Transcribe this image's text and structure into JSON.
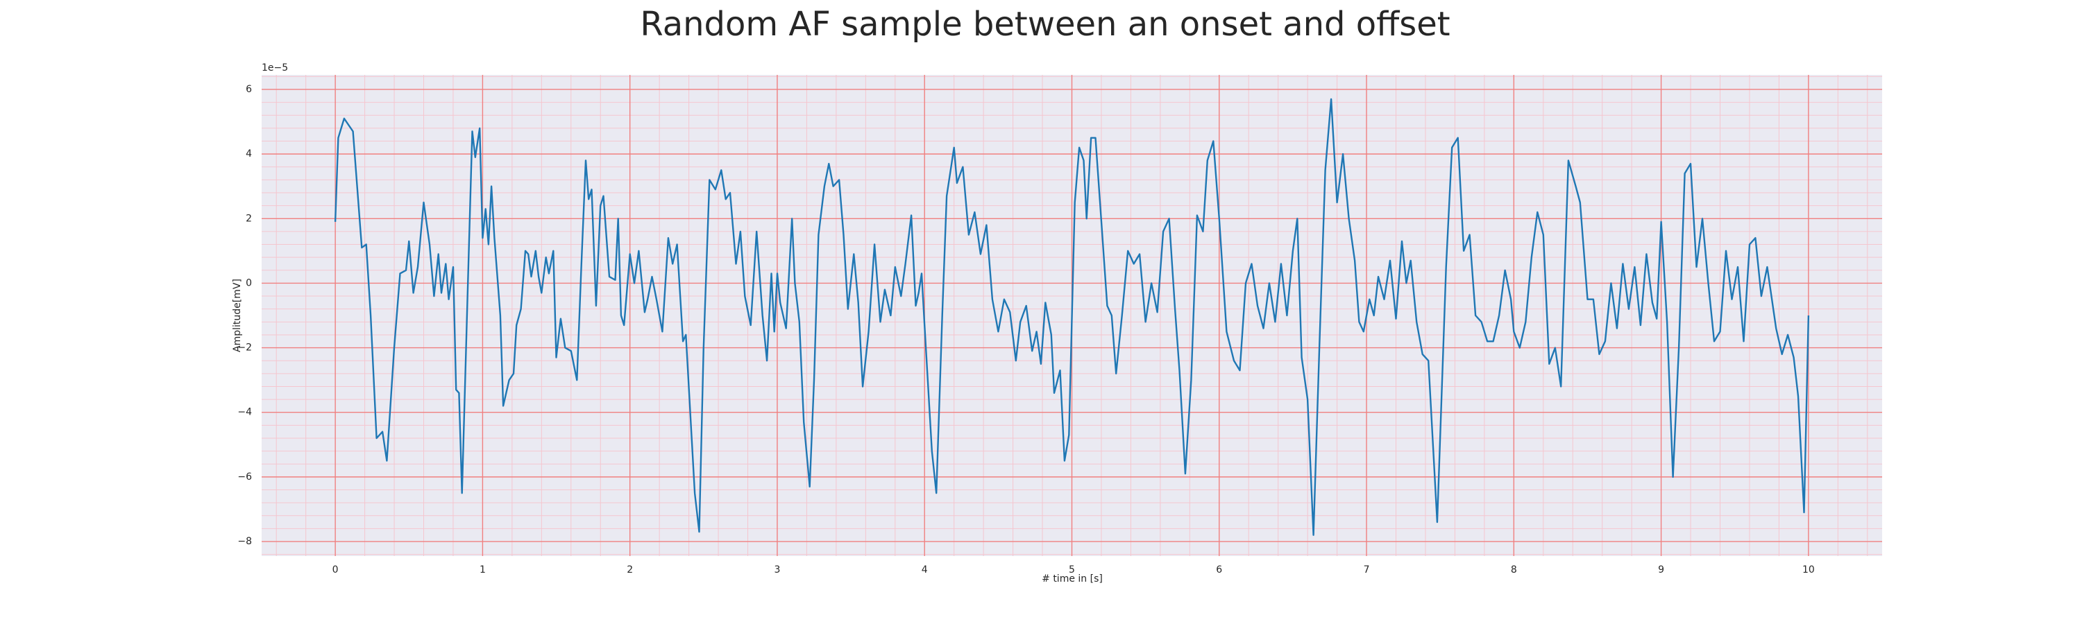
{
  "chart_data": {
    "type": "line",
    "title": "Random AF sample between an onset and offset",
    "x_label": "# time in [s]",
    "y_label": "Amplitude[mV]",
    "y_offset_label": "1e−5",
    "color": "#1f77b4",
    "background": "#eaeaf2",
    "grid": true,
    "grid_color": "#f08080",
    "minor_grid": true,
    "minor_grid_color": "#f5c6cf",
    "minor_divisions": 5,
    "xlim": [
      -0.5,
      10.5
    ],
    "ylim": [
      -8.45,
      6.45
    ],
    "xticks": [
      0,
      1,
      2,
      3,
      4,
      5,
      6,
      7,
      8,
      9,
      10
    ],
    "yticks": [
      {
        "value": -8,
        "label": "−8"
      },
      {
        "value": -6,
        "label": "−6"
      },
      {
        "value": -4,
        "label": "−4"
      },
      {
        "value": -2,
        "label": "−2"
      },
      0,
      2,
      4,
      6
    ],
    "x": [
      0,
      0.02,
      0.06,
      0.12,
      0.18,
      0.21,
      0.24,
      0.28,
      0.32,
      0.35,
      0.4,
      0.44,
      0.48,
      0.5,
      0.53,
      0.56,
      0.6,
      0.64,
      0.67,
      0.7,
      0.72,
      0.75,
      0.77,
      0.8,
      0.82,
      0.84,
      0.86,
      0.9,
      0.93,
      0.95,
      0.98,
      1.0,
      1.02,
      1.04,
      1.06,
      1.08,
      1.12,
      1.14,
      1.18,
      1.21,
      1.23,
      1.26,
      1.29,
      1.31,
      1.33,
      1.36,
      1.38,
      1.4,
      1.43,
      1.45,
      1.48,
      1.5,
      1.53,
      1.56,
      1.6,
      1.64,
      1.67,
      1.7,
      1.72,
      1.74,
      1.77,
      1.8,
      1.82,
      1.86,
      1.9,
      1.92,
      1.94,
      1.96,
      2.0,
      2.03,
      2.06,
      2.1,
      2.12,
      2.15,
      2.18,
      2.22,
      2.26,
      2.29,
      2.32,
      2.36,
      2.38,
      2.44,
      2.47,
      2.5,
      2.54,
      2.58,
      2.62,
      2.65,
      2.68,
      2.72,
      2.75,
      2.78,
      2.82,
      2.86,
      2.9,
      2.93,
      2.96,
      2.98,
      3.0,
      3.02,
      3.06,
      3.1,
      3.12,
      3.15,
      3.18,
      3.22,
      3.25,
      3.28,
      3.32,
      3.35,
      3.38,
      3.42,
      3.45,
      3.48,
      3.52,
      3.55,
      3.58,
      3.62,
      3.66,
      3.7,
      3.73,
      3.77,
      3.8,
      3.84,
      3.87,
      3.91,
      3.94,
      3.96,
      3.98,
      4.0,
      4.05,
      4.08,
      4.12,
      4.15,
      4.2,
      4.22,
      4.26,
      4.3,
      4.34,
      4.38,
      4.42,
      4.46,
      4.5,
      4.54,
      4.58,
      4.62,
      4.65,
      4.69,
      4.73,
      4.76,
      4.79,
      4.82,
      4.86,
      4.88,
      4.92,
      4.95,
      4.98,
      5.02,
      5.05,
      5.08,
      5.1,
      5.13,
      5.16,
      5.2,
      5.24,
      5.27,
      5.3,
      5.34,
      5.38,
      5.42,
      5.46,
      5.5,
      5.54,
      5.58,
      5.62,
      5.66,
      5.7,
      5.73,
      5.77,
      5.81,
      5.85,
      5.89,
      5.92,
      5.96,
      6.0,
      6.05,
      6.1,
      6.14,
      6.18,
      6.22,
      6.26,
      6.3,
      6.34,
      6.38,
      6.42,
      6.46,
      6.5,
      6.53,
      6.56,
      6.6,
      6.64,
      6.68,
      6.72,
      6.76,
      6.8,
      6.84,
      6.88,
      6.92,
      6.95,
      6.98,
      7.02,
      7.05,
      7.08,
      7.12,
      7.16,
      7.2,
      7.24,
      7.27,
      7.3,
      7.34,
      7.38,
      7.42,
      7.48,
      7.54,
      7.58,
      7.62,
      7.66,
      7.7,
      7.74,
      7.78,
      7.82,
      7.86,
      7.9,
      7.94,
      7.98,
      8.0,
      8.04,
      8.08,
      8.12,
      8.16,
      8.2,
      8.24,
      8.28,
      8.32,
      8.37,
      8.42,
      8.45,
      8.5,
      8.54,
      8.58,
      8.62,
      8.66,
      8.7,
      8.74,
      8.78,
      8.82,
      8.86,
      8.9,
      8.94,
      8.97,
      9.0,
      9.04,
      9.08,
      9.12,
      9.16,
      9.2,
      9.24,
      9.28,
      9.32,
      9.36,
      9.4,
      9.44,
      9.48,
      9.52,
      9.56,
      9.6,
      9.64,
      9.68,
      9.72,
      9.78,
      9.82,
      9.86,
      9.9,
      9.93,
      9.97,
      10.0
    ],
    "values": [
      1.9,
      4.5,
      5.1,
      4.7,
      1.1,
      1.2,
      -1,
      -4.8,
      -4.6,
      -5.5,
      -2,
      0.3,
      0.4,
      1.3,
      -0.3,
      0.5,
      2.5,
      1.2,
      -0.4,
      0.9,
      -0.3,
      0.6,
      -0.5,
      0.5,
      -3.3,
      -3.4,
      -6.5,
      0,
      4.7,
      3.9,
      4.8,
      1.4,
      2.3,
      1.2,
      3.0,
      1.4,
      -1,
      -3.8,
      -3.0,
      -2.8,
      -1.3,
      -0.8,
      1.0,
      0.9,
      0.2,
      1.0,
      0.2,
      -0.3,
      0.8,
      0.3,
      1.0,
      -2.3,
      -1.1,
      -2,
      -2.1,
      -3,
      0.5,
      3.8,
      2.6,
      2.9,
      -0.7,
      2.4,
      2.7,
      0.2,
      0.1,
      2,
      -1,
      -1.3,
      0.9,
      0,
      1,
      -0.9,
      -0.5,
      0.2,
      -0.5,
      -1.5,
      1.4,
      0.6,
      1.2,
      -1.8,
      -1.6,
      -6.5,
      -7.7,
      -2,
      3.2,
      2.9,
      3.5,
      2.6,
      2.8,
      0.6,
      1.6,
      -0.4,
      -1.3,
      1.6,
      -1.0,
      -2.4,
      0.3,
      -1.5,
      0.3,
      -0.6,
      -1.4,
      2.0,
      0,
      -1.2,
      -4.3,
      -6.3,
      -3,
      1.5,
      3.0,
      3.7,
      3.0,
      3.2,
      1.5,
      -0.8,
      0.9,
      -0.6,
      -3.2,
      -1.5,
      1.2,
      -1.2,
      -0.2,
      -1.0,
      0.5,
      -0.4,
      0.6,
      2.1,
      -0.7,
      -0.3,
      0.3,
      -1.3,
      -5.2,
      -6.5,
      -1,
      2.7,
      4.2,
      3.1,
      3.6,
      1.5,
      2.2,
      0.9,
      1.8,
      -0.5,
      -1.5,
      -0.5,
      -0.9,
      -2.4,
      -1.2,
      -0.7,
      -2.1,
      -1.5,
      -2.5,
      -0.6,
      -1.6,
      -3.4,
      -2.7,
      -5.5,
      -4.7,
      2.5,
      4.2,
      3.8,
      2,
      4.5,
      4.5,
      1.9,
      -0.7,
      -1.0,
      -2.8,
      -1,
      1.0,
      0.6,
      0.9,
      -1.2,
      0,
      -0.9,
      1.6,
      2.0,
      -0.8,
      -2.7,
      -5.9,
      -3,
      2.1,
      1.6,
      3.8,
      4.4,
      2,
      -1.5,
      -2.4,
      -2.7,
      0,
      0.6,
      -0.7,
      -1.4,
      0,
      -1.2,
      0.6,
      -1.0,
      1.0,
      2,
      -2.3,
      -3.6,
      -7.8,
      -2,
      3.5,
      5.7,
      2.5,
      4,
      2,
      0.7,
      -1.2,
      -1.5,
      -0.5,
      -1.0,
      0.2,
      -0.5,
      0.7,
      -1.1,
      1.3,
      0,
      0.7,
      -1.2,
      -2.2,
      -2.4,
      -7.4,
      0.5,
      4.2,
      4.5,
      1.0,
      1.5,
      -1.0,
      -1.2,
      -1.8,
      -1.8,
      -1.0,
      0.4,
      -0.5,
      -1.5,
      -2.0,
      -1.2,
      0.8,
      2.2,
      1.5,
      -2.5,
      -2.0,
      -3.2,
      3.8,
      3.0,
      2.5,
      -0.5,
      -0.5,
      -2.2,
      -1.8,
      0,
      -1.4,
      0.6,
      -0.8,
      0.5,
      -1.3,
      0.9,
      -0.6,
      -1.1,
      1.9,
      -1.2,
      -6.0,
      -2,
      3.4,
      3.7,
      0.5,
      2,
      0,
      -1.8,
      -1.5,
      1.0,
      -0.5,
      0.5,
      -1.8,
      1.2,
      1.4,
      -0.4,
      0.5,
      -1.4,
      -2.2,
      -1.6,
      -2.3,
      -3.5,
      -7.1,
      -1.0
    ]
  }
}
